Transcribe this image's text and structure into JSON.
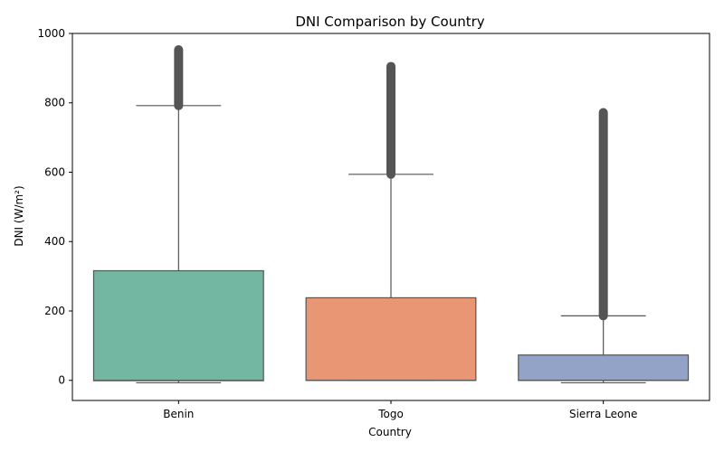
{
  "chart_data": {
    "type": "box",
    "title": "DNI Comparison by Country",
    "xlabel": "Country",
    "ylabel": "DNI (W/m²)",
    "ylim": [
      -58,
      1000
    ],
    "yticks": [
      0,
      200,
      400,
      600,
      800,
      1000
    ],
    "grid": false,
    "legend": "none",
    "categories": [
      "Benin",
      "Togo",
      "Sierra Leone"
    ],
    "colors": [
      "#73b6a1",
      "#e99675",
      "#93a2c7"
    ],
    "box_edge_color": "#555555",
    "outlier_color": "#555555",
    "boxes": [
      {
        "category": "Benin",
        "whisker_low": -7,
        "q1": -1,
        "median": 0,
        "q3": 316,
        "whisker_high": 792,
        "outliers_from": 792,
        "outliers_to": 953
      },
      {
        "category": "Togo",
        "whisker_low": 0,
        "q1": 0,
        "median": 0,
        "q3": 238,
        "whisker_high": 594,
        "outliers_from": 594,
        "outliers_to": 905
      },
      {
        "category": "Sierra Leone",
        "whisker_low": -7,
        "q1": 0,
        "median": 0,
        "q3": 73,
        "whisker_high": 186,
        "outliers_from": 186,
        "outliers_to": 772
      }
    ]
  }
}
